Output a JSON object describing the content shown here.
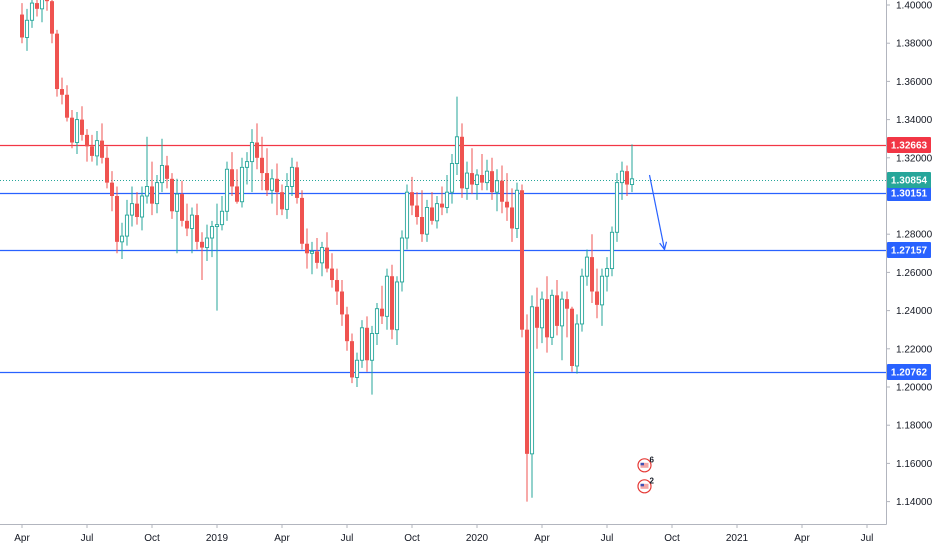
{
  "colors": {
    "up": "#26a69a",
    "down": "#ef5350",
    "resistance": "#f23645",
    "support": "#2962ff",
    "last_price": "#26a69a",
    "arrow": "#2962ff"
  },
  "chart_data": {
    "type": "candlestick",
    "title": "",
    "ylim": [
      1.138,
      1.408
    ],
    "y_ticks": [
      1.4,
      1.38,
      1.36,
      1.34,
      1.32,
      1.28,
      1.26,
      1.24,
      1.22,
      1.2,
      1.18,
      1.16,
      1.14
    ],
    "y_tick_labels": [
      "1.40000",
      "1.38000",
      "1.36000",
      "1.34000",
      "1.32000",
      "1.28000",
      "1.26000",
      "1.24000",
      "1.22000",
      "1.20000",
      "1.18000",
      "1.16000",
      "1.14000"
    ],
    "x_ticks": [
      {
        "label": "Apr",
        "week": 0
      },
      {
        "label": "Jul",
        "week": 13
      },
      {
        "label": "Oct",
        "week": 26
      },
      {
        "label": "2019",
        "week": 39
      },
      {
        "label": "Apr",
        "week": 52
      },
      {
        "label": "Jul",
        "week": 65
      },
      {
        "label": "Oct",
        "week": 78
      },
      {
        "label": "2020",
        "week": 91
      },
      {
        "label": "Apr",
        "week": 104
      },
      {
        "label": "Jul",
        "week": 117
      },
      {
        "label": "Oct",
        "week": 130
      },
      {
        "label": "2021",
        "week": 143
      },
      {
        "label": "Apr",
        "week": 156
      },
      {
        "label": "Jul",
        "week": 169
      }
    ],
    "horizontal_lines": [
      {
        "value": 1.32663,
        "label": "1.32663",
        "role": "resistance"
      },
      {
        "value": 1.30151,
        "label": "1.30151",
        "role": "support"
      },
      {
        "value": 1.27157,
        "label": "1.27157",
        "role": "support"
      },
      {
        "value": 1.20762,
        "label": "1.20762",
        "role": "support"
      }
    ],
    "last_price": {
      "value": 1.30854,
      "label": "1.30854"
    },
    "projection_arrow": {
      "from": {
        "week": 125.5,
        "value": 1.311
      },
      "to": {
        "week": 128.5,
        "value": 1.272
      }
    },
    "event_markers": [
      {
        "week": 124.5,
        "value": 1.159,
        "count": "6"
      },
      {
        "week": 124.5,
        "value": 1.148,
        "count": "2"
      }
    ],
    "candles": [
      [
        1.395,
        1.401,
        1.38,
        1.383
      ],
      [
        1.383,
        1.398,
        1.376,
        1.392
      ],
      [
        1.392,
        1.405,
        1.388,
        1.401
      ],
      [
        1.401,
        1.408,
        1.394,
        1.398
      ],
      [
        1.398,
        1.412,
        1.391,
        1.406
      ],
      [
        1.406,
        1.41,
        1.397,
        1.402
      ],
      [
        1.402,
        1.405,
        1.38,
        1.385
      ],
      [
        1.385,
        1.387,
        1.352,
        1.356
      ],
      [
        1.356,
        1.362,
        1.348,
        1.353
      ],
      [
        1.353,
        1.358,
        1.339,
        1.341
      ],
      [
        1.341,
        1.345,
        1.325,
        1.328
      ],
      [
        1.328,
        1.344,
        1.322,
        1.34
      ],
      [
        1.34,
        1.347,
        1.329,
        1.332
      ],
      [
        1.332,
        1.335,
        1.318,
        1.326
      ],
      [
        1.326,
        1.332,
        1.318,
        1.321
      ],
      [
        1.321,
        1.334,
        1.316,
        1.329
      ],
      [
        1.329,
        1.338,
        1.317,
        1.32
      ],
      [
        1.32,
        1.326,
        1.304,
        1.307
      ],
      [
        1.307,
        1.313,
        1.292,
        1.3
      ],
      [
        1.3,
        1.305,
        1.27,
        1.276
      ],
      [
        1.276,
        1.286,
        1.267,
        1.279
      ],
      [
        1.279,
        1.298,
        1.274,
        1.29
      ],
      [
        1.29,
        1.305,
        1.284,
        1.296
      ],
      [
        1.296,
        1.302,
        1.285,
        1.289
      ],
      [
        1.289,
        1.305,
        1.282,
        1.3
      ],
      [
        1.3,
        1.331,
        1.296,
        1.305
      ],
      [
        1.305,
        1.318,
        1.29,
        1.296
      ],
      [
        1.296,
        1.311,
        1.291,
        1.307
      ],
      [
        1.307,
        1.33,
        1.302,
        1.316
      ],
      [
        1.316,
        1.321,
        1.304,
        1.309
      ],
      [
        1.309,
        1.312,
        1.288,
        1.292
      ],
      [
        1.292,
        1.309,
        1.27,
        1.301
      ],
      [
        1.301,
        1.308,
        1.284,
        1.287
      ],
      [
        1.287,
        1.296,
        1.279,
        1.283
      ],
      [
        1.283,
        1.294,
        1.27,
        1.29
      ],
      [
        1.29,
        1.296,
        1.272,
        1.276
      ],
      [
        1.276,
        1.281,
        1.256,
        1.273
      ],
      [
        1.273,
        1.285,
        1.266,
        1.278
      ],
      [
        1.278,
        1.287,
        1.268,
        1.284
      ],
      [
        1.284,
        1.296,
        1.24,
        1.285
      ],
      [
        1.285,
        1.3,
        1.282,
        1.292
      ],
      [
        1.292,
        1.318,
        1.287,
        1.314
      ],
      [
        1.314,
        1.323,
        1.3,
        1.305
      ],
      [
        1.305,
        1.314,
        1.296,
        1.297
      ],
      [
        1.297,
        1.32,
        1.294,
        1.315
      ],
      [
        1.315,
        1.323,
        1.306,
        1.318
      ],
      [
        1.318,
        1.335,
        1.302,
        1.328
      ],
      [
        1.328,
        1.338,
        1.314,
        1.32
      ],
      [
        1.32,
        1.331,
        1.303,
        1.312
      ],
      [
        1.312,
        1.325,
        1.3,
        1.303
      ],
      [
        1.303,
        1.314,
        1.296,
        1.309
      ],
      [
        1.309,
        1.317,
        1.29,
        1.302
      ],
      [
        1.302,
        1.306,
        1.29,
        1.293
      ],
      [
        1.293,
        1.312,
        1.288,
        1.305
      ],
      [
        1.305,
        1.32,
        1.3,
        1.315
      ],
      [
        1.315,
        1.318,
        1.296,
        1.299
      ],
      [
        1.299,
        1.303,
        1.272,
        1.275
      ],
      [
        1.275,
        1.283,
        1.262,
        1.27
      ],
      [
        1.27,
        1.276,
        1.259,
        1.271
      ],
      [
        1.271,
        1.278,
        1.262,
        1.265
      ],
      [
        1.265,
        1.276,
        1.258,
        1.273
      ],
      [
        1.273,
        1.281,
        1.26,
        1.262
      ],
      [
        1.262,
        1.27,
        1.252,
        1.256
      ],
      [
        1.256,
        1.262,
        1.243,
        1.25
      ],
      [
        1.25,
        1.256,
        1.232,
        1.238
      ],
      [
        1.238,
        1.242,
        1.219,
        1.224
      ],
      [
        1.224,
        1.228,
        1.202,
        1.205
      ],
      [
        1.205,
        1.218,
        1.2,
        1.214
      ],
      [
        1.214,
        1.235,
        1.21,
        1.231
      ],
      [
        1.231,
        1.237,
        1.208,
        1.214
      ],
      [
        1.214,
        1.232,
        1.196,
        1.228
      ],
      [
        1.228,
        1.244,
        1.222,
        1.241
      ],
      [
        1.241,
        1.253,
        1.233,
        1.237
      ],
      [
        1.237,
        1.262,
        1.23,
        1.258
      ],
      [
        1.258,
        1.264,
        1.225,
        1.23
      ],
      [
        1.23,
        1.258,
        1.222,
        1.255
      ],
      [
        1.255,
        1.282,
        1.25,
        1.278
      ],
      [
        1.278,
        1.306,
        1.272,
        1.302
      ],
      [
        1.302,
        1.31,
        1.29,
        1.295
      ],
      [
        1.295,
        1.302,
        1.285,
        1.289
      ],
      [
        1.289,
        1.303,
        1.276,
        1.28
      ],
      [
        1.28,
        1.298,
        1.276,
        1.294
      ],
      [
        1.294,
        1.302,
        1.285,
        1.287
      ],
      [
        1.287,
        1.3,
        1.283,
        1.296
      ],
      [
        1.296,
        1.305,
        1.29,
        1.294
      ],
      [
        1.294,
        1.311,
        1.291,
        1.302
      ],
      [
        1.302,
        1.322,
        1.296,
        1.317
      ],
      [
        1.317,
        1.352,
        1.311,
        1.331
      ],
      [
        1.331,
        1.338,
        1.299,
        1.304
      ],
      [
        1.304,
        1.318,
        1.298,
        1.312
      ],
      [
        1.312,
        1.325,
        1.301,
        1.306
      ],
      [
        1.306,
        1.314,
        1.298,
        1.311
      ],
      [
        1.311,
        1.322,
        1.303,
        1.307
      ],
      [
        1.307,
        1.319,
        1.303,
        1.313
      ],
      [
        1.313,
        1.32,
        1.298,
        1.302
      ],
      [
        1.302,
        1.314,
        1.292,
        1.308
      ],
      [
        1.308,
        1.316,
        1.291,
        1.297
      ],
      [
        1.297,
        1.312,
        1.287,
        1.294
      ],
      [
        1.294,
        1.304,
        1.276,
        1.283
      ],
      [
        1.283,
        1.307,
        1.278,
        1.303
      ],
      [
        1.303,
        1.306,
        1.226,
        1.23
      ],
      [
        1.23,
        1.238,
        1.14,
        1.165
      ],
      [
        1.165,
        1.248,
        1.142,
        1.242
      ],
      [
        1.242,
        1.252,
        1.22,
        1.231
      ],
      [
        1.231,
        1.25,
        1.223,
        1.246
      ],
      [
        1.246,
        1.258,
        1.218,
        1.226
      ],
      [
        1.226,
        1.251,
        1.222,
        1.248
      ],
      [
        1.248,
        1.256,
        1.227,
        1.232
      ],
      [
        1.232,
        1.25,
        1.214,
        1.246
      ],
      [
        1.246,
        1.25,
        1.226,
        1.241
      ],
      [
        1.241,
        1.242,
        1.208,
        1.211
      ],
      [
        1.211,
        1.238,
        1.207,
        1.233
      ],
      [
        1.233,
        1.262,
        1.229,
        1.258
      ],
      [
        1.258,
        1.272,
        1.253,
        1.268
      ],
      [
        1.268,
        1.28,
        1.244,
        1.25
      ],
      [
        1.25,
        1.262,
        1.236,
        1.243
      ],
      [
        1.243,
        1.262,
        1.232,
        1.258
      ],
      [
        1.258,
        1.268,
        1.25,
        1.262
      ],
      [
        1.262,
        1.284,
        1.258,
        1.281
      ],
      [
        1.281,
        1.312,
        1.276,
        1.307
      ],
      [
        1.307,
        1.318,
        1.298,
        1.313
      ],
      [
        1.313,
        1.316,
        1.3,
        1.306
      ],
      [
        1.306,
        1.327,
        1.302,
        1.309
      ]
    ]
  }
}
